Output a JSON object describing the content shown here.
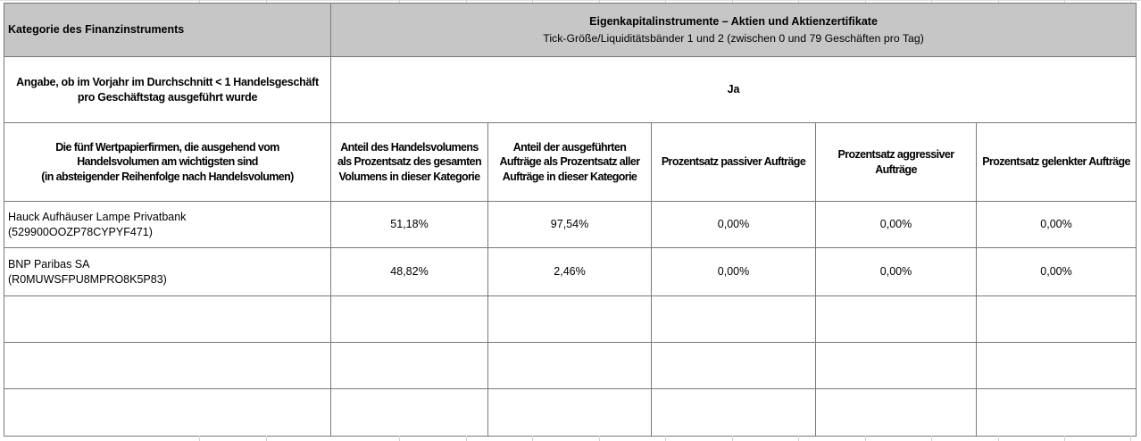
{
  "colors": {
    "header_bg": "#c6c6c6",
    "border": "#787878"
  },
  "table": {
    "category_header": {
      "label": "Kategorie des Finanzinstruments",
      "instrument_class_line1": "Eigenkapitalinstrumente – Aktien und Aktienzertifikate",
      "instrument_class_line2": "Tick-Größe/Liquiditätsbänder 1 und 2 (zwischen 0 und 79 Geschäften pro Tag)"
    },
    "question_row": {
      "question": "Angabe, ob im Vorjahr im Durchschnitt < 1 Handelsgeschäft\npro Geschäftstag ausgeführt wurde",
      "answer": "Ja"
    },
    "column_headers": {
      "firms": "Die fünf Wertpapierfirmen, die ausgehend vom\nHandelsvolumen am wichtigsten sind\n(in absteigender Reihenfolge nach Handelsvolumen)",
      "volume_pct": "Anteil des Handelsvolumens\nals Prozentsatz des gesamten\nVolumens in dieser Kategorie",
      "orders_pct": "Anteil der ausgeführten\nAufträge als Prozentsatz aller\nAufträge in dieser Kategorie",
      "passive_pct": "Prozentsatz passiver Aufträge",
      "aggressive_pct": "Prozentsatz aggressiver\nAufträge",
      "directed_pct": "Prozentsatz gelenkter Aufträge"
    },
    "rows": [
      {
        "firm": "Hauck Aufhäuser Lampe Privatbank\n(529900OOZP78CYPYF471)",
        "values": [
          "51,18%",
          "97,54%",
          "0,00%",
          "0,00%",
          "0,00%"
        ]
      },
      {
        "firm": "BNP Paribas SA\n(R0MUWSFPU8MPRO8K5P83)",
        "values": [
          "48,82%",
          "2,46%",
          "0,00%",
          "0,00%",
          "0,00%"
        ]
      },
      {
        "firm": "",
        "values": [
          "",
          "",
          "",
          "",
          ""
        ]
      },
      {
        "firm": "",
        "values": [
          "",
          "",
          "",
          "",
          ""
        ]
      },
      {
        "firm": "",
        "values": [
          "",
          "",
          "",
          "",
          ""
        ]
      }
    ]
  }
}
